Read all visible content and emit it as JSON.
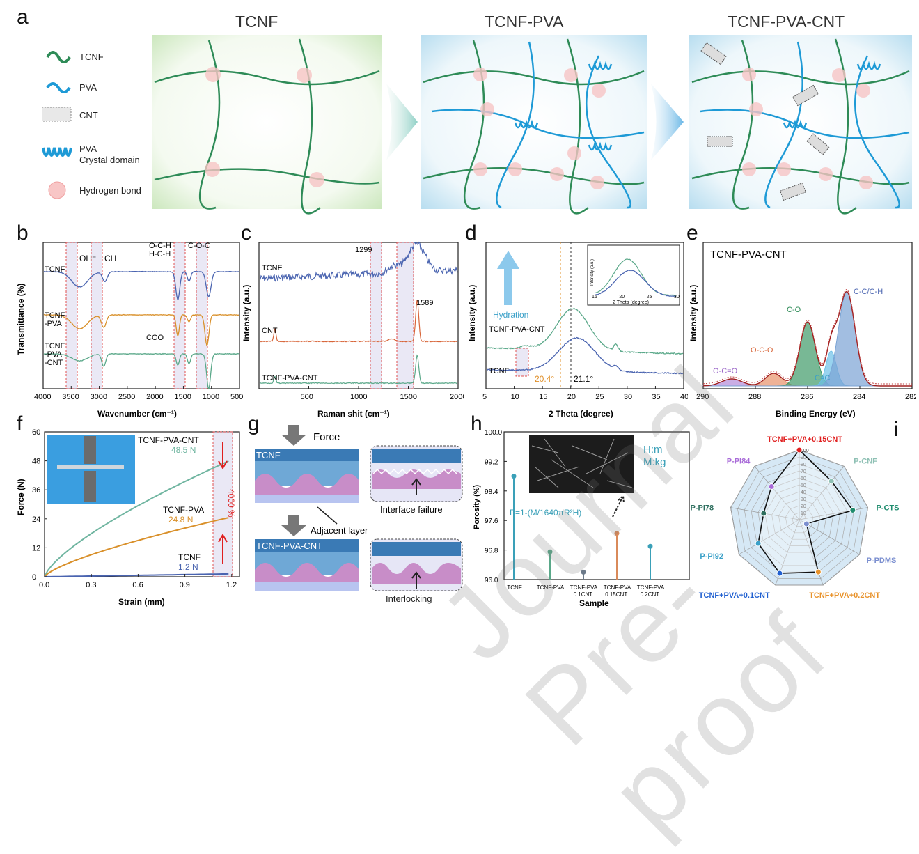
{
  "panel_a": {
    "letter": "a",
    "titles": [
      "TCNF",
      "TCNF-PVA",
      "TCNF-PVA-CNT"
    ],
    "legend": [
      {
        "icon": "tcnf-wave-icon",
        "label": "TCNF",
        "color": "#2e8b57"
      },
      {
        "icon": "pva-wave-icon",
        "label": "PVA",
        "color": "#1e9ad6"
      },
      {
        "icon": "cnt-icon",
        "label": "CNT",
        "color": "#555555"
      },
      {
        "icon": "pva-crystal-icon",
        "label": "PVA",
        "label2": "Crystal domain",
        "color": "#1e9ad6"
      },
      {
        "icon": "hydrogen-bond-icon",
        "label": "Hydrogen bond",
        "color": "#f4a6a6"
      }
    ]
  },
  "panel_b": {
    "letter": "b",
    "chart_data": {
      "type": "line",
      "xlabel": "Wavenumber (cm⁻¹)",
      "ylabel": "Transmittance (%)",
      "xlim": [
        4000,
        500
      ],
      "xticks": [
        "4000",
        "3500",
        "3000",
        "2500",
        "2000",
        "1500",
        "1000",
        "500"
      ],
      "series": [
        {
          "name": "TCNF",
          "color": "#4a64b0"
        },
        {
          "name": "TCNF-PVA",
          "label_lines": [
            "TCNF",
            "-PVA"
          ],
          "color": "#d9902a"
        },
        {
          "name": "TCNF-PVA-CNT",
          "label_lines": [
            "TCNF",
            "-PVA",
            "-CNT"
          ],
          "color": "#5aa889"
        }
      ],
      "annotations": [
        "OH⁻",
        "CH",
        "O-C-H",
        "H-C-H",
        "C-O-C",
        "COO⁻"
      ]
    }
  },
  "panel_c": {
    "letter": "c",
    "chart_data": {
      "type": "line",
      "xlabel": "Raman shit (cm⁻¹)",
      "ylabel": "Intensity (a.u.)",
      "xlim": [
        0,
        2000
      ],
      "xticks": [
        "500",
        "1000",
        "1500",
        "2000"
      ],
      "series": [
        {
          "name": "TCNF",
          "color": "#4a64b0"
        },
        {
          "name": "CNT",
          "color": "#d8663a"
        },
        {
          "name": "TCNF-PVA-CNT",
          "color": "#5aa889"
        }
      ],
      "annotations": [
        "1299",
        "1589"
      ]
    }
  },
  "panel_d": {
    "letter": "d",
    "chart_data": {
      "type": "line",
      "xlabel": "2 Theta (degree)",
      "ylabel": "Intensity (a.u.)",
      "xlim": [
        5,
        40
      ],
      "xticks": [
        "5",
        "10",
        "15",
        "20",
        "25",
        "30",
        "35",
        "40"
      ],
      "series": [
        {
          "name": "TCNF-PVA-CNT",
          "color": "#5aa889"
        },
        {
          "name": "TCNF",
          "color": "#4a64b0"
        }
      ],
      "annotations": [
        "Hydration",
        "20.4°",
        "21.1°"
      ],
      "inset": {
        "xlabel": "2 Theta (degree)",
        "ylabel": "Intensity (a.u.)",
        "xticks": [
          "15",
          "20",
          "25",
          "30"
        ]
      }
    }
  },
  "panel_e": {
    "letter": "e",
    "chart_data": {
      "type": "area",
      "title": "TCNF-PVA-CNT",
      "xlabel": "Binding Energy (eV)",
      "ylabel": "Intensity (a.u.)",
      "xlim": [
        290,
        282
      ],
      "xticks": [
        "290",
        "288",
        "286",
        "284",
        "282"
      ],
      "peaks": [
        {
          "label": "O-C=O",
          "center": 288.9,
          "color": "#b48ad8"
        },
        {
          "label": "O-C-O",
          "center": 287.3,
          "color": "#e8916a"
        },
        {
          "label": "C-O",
          "center": 286.0,
          "color": "#3f9a68"
        },
        {
          "label": "C=C",
          "center": 285.1,
          "color": "#6cc0e8"
        },
        {
          "label": "C-C/C-H",
          "center": 284.5,
          "color": "#7aa3d4"
        }
      ]
    }
  },
  "panel_f": {
    "letter": "f",
    "chart_data": {
      "type": "line",
      "xlabel": "Strain (mm)",
      "ylabel": "Force (N)",
      "xlim": [
        0,
        1.25
      ],
      "ylim": [
        0,
        60
      ],
      "xticks": [
        "0.0",
        "0.3",
        "0.6",
        "0.9",
        "1.2"
      ],
      "yticks": [
        "0",
        "12",
        "24",
        "36",
        "48",
        "60"
      ],
      "series": [
        {
          "name": "TCNF-PVA-CNT",
          "value_label": "48.5 N",
          "final": 48.5,
          "color": "#6fb5a0"
        },
        {
          "name": "TCNF-PVA",
          "value_label": "24.8 N",
          "final": 24.8,
          "color": "#d9902a"
        },
        {
          "name": "TCNF",
          "value_label": "1.2 N",
          "final": 1.2,
          "color": "#4a64b0"
        }
      ],
      "annotations": [
        "4000 %"
      ]
    }
  },
  "panel_g": {
    "letter": "g",
    "labels": [
      "Force",
      "TCNF",
      "Interface failure",
      "Adjacent layer",
      "TCNF-PVA-CNT",
      "Interlocking"
    ]
  },
  "panel_h": {
    "letter": "h",
    "chart_data": {
      "type": "scatter",
      "xlabel": "Sample",
      "ylabel": "Porosity (%)",
      "ylim": [
        96.0,
        100.0
      ],
      "yticks": [
        "96.0",
        "96.8",
        "97.6",
        "98.4",
        "99.2",
        "100.0"
      ],
      "categories": [
        "TCNF",
        "TCNF-PVA",
        "TCNF-PVA 0.1CNT",
        "TCNF-PVA 0.15CNT",
        "TCNF-PVA 0.2CNT"
      ],
      "category_lines": [
        [
          "TCNF"
        ],
        [
          "TCNF-PVA"
        ],
        [
          "TCNF-PVA",
          "0.1CNT"
        ],
        [
          "TCNF-PVA",
          "0.15CNT"
        ],
        [
          "TCNF-PVA",
          "0.2CNT"
        ]
      ],
      "values": [
        98.8,
        96.75,
        96.2,
        97.25,
        96.9
      ],
      "colors": [
        "#3aa0b8",
        "#5aa889",
        "#6c7a8a",
        "#d98a5a",
        "#3aa0b8"
      ],
      "annotations": [
        "P=1-(M/1640πR²H)",
        "H:m",
        "M:kg"
      ]
    }
  },
  "panel_i": {
    "letter": "i",
    "chart_data": {
      "type": "radar",
      "axes": [
        {
          "label": "TCNF+PVA+0.15CNT",
          "value": 100,
          "color": "#e02020"
        },
        {
          "label": "P-CNF",
          "value": 72,
          "color": "#8ec0b4"
        },
        {
          "label": "P-CTS",
          "value": 78,
          "color": "#1f8c6e"
        },
        {
          "label": "P-PDMS",
          "value": 12,
          "color": "#7b8fd0"
        },
        {
          "label": "TCNF+PVA+0.2CNT",
          "value": 80,
          "color": "#e8922a"
        },
        {
          "label": "TCNF+PVA+0.1CNT",
          "value": 82,
          "color": "#1f5fd0"
        },
        {
          "label": "P-PI92",
          "value": 68,
          "color": "#3aa0c8"
        },
        {
          "label": "P-PI78",
          "value": 52,
          "color": "#2d6e5e"
        },
        {
          "label": "P-PI84",
          "value": 62,
          "color": "#a86ad8"
        }
      ],
      "rings": [
        "10",
        "20",
        "30",
        "40",
        "50",
        "60",
        "70",
        "80",
        "90",
        "100"
      ]
    }
  },
  "watermark": "Journal Pre-proof"
}
